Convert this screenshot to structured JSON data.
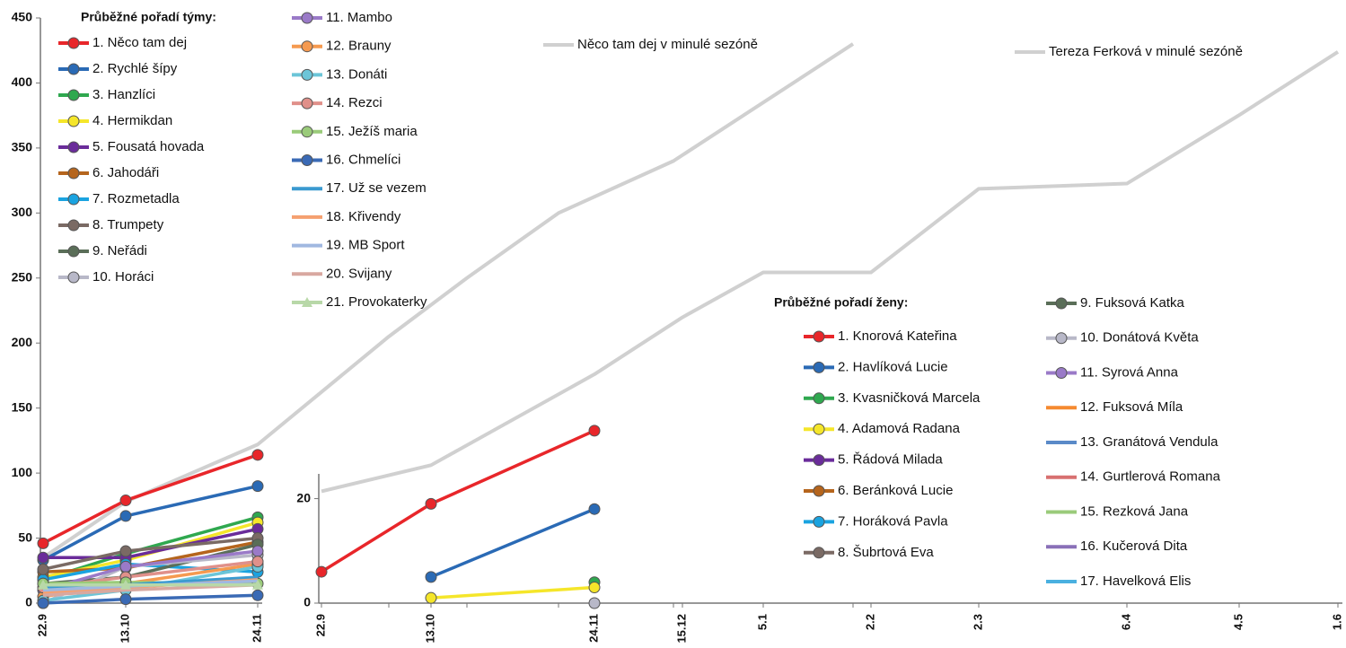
{
  "chart_data": [
    {
      "type": "line",
      "legend_title": "Průběžné pořadí týmy:",
      "categories": [
        "22.9",
        "13.10",
        "24.11",
        null,
        null,
        null,
        null,
        null,
        null
      ],
      "ylim": [
        0,
        450
      ],
      "yticks": [
        0,
        50,
        100,
        150,
        200,
        250,
        300,
        350,
        400,
        450
      ],
      "series": [
        {
          "name": "1. Něco tam dej",
          "color": "#e8262a",
          "marker": "circle",
          "values": [
            46,
            79,
            114,
            null,
            null,
            null,
            null,
            null,
            null
          ]
        },
        {
          "name": "2. Rychlé šípy",
          "color": "#2a6ab5",
          "marker": "circle",
          "values": [
            33,
            67,
            90,
            null,
            null,
            null,
            null,
            null,
            null
          ]
        },
        {
          "name": "3. Hanzlíci",
          "color": "#2fa84f",
          "marker": "circle",
          "values": [
            18,
            38,
            66,
            null,
            null,
            null,
            null,
            null,
            null
          ]
        },
        {
          "name": "4. Hermikdan",
          "color": "#f5e62a",
          "marker": "circle",
          "values": [
            20,
            33,
            62,
            null,
            null,
            null,
            null,
            null,
            null
          ]
        },
        {
          "name": "5. Fousatá hovada",
          "color": "#6a2c9a",
          "marker": "circle",
          "values": [
            35,
            35,
            57,
            null,
            null,
            null,
            null,
            null,
            null
          ]
        },
        {
          "name": "6. Jahodáři",
          "color": "#b5651d",
          "marker": "circle",
          "values": [
            24,
            27,
            47,
            null,
            null,
            null,
            null,
            null,
            null
          ]
        },
        {
          "name": "7. Rozmetadla",
          "color": "#1aa3e0",
          "marker": "circle",
          "values": [
            18,
            30,
            24,
            null,
            null,
            null,
            null,
            null,
            null
          ]
        },
        {
          "name": "8. Trumpety",
          "color": "#7a6a64",
          "marker": "circle",
          "values": [
            26,
            40,
            50,
            null,
            null,
            null,
            null,
            null,
            null
          ]
        },
        {
          "name": "9. Neřádi",
          "color": "#5a6e58",
          "marker": "circle",
          "values": [
            15,
            20,
            45,
            null,
            null,
            null,
            null,
            null,
            null
          ]
        },
        {
          "name": "10. Horáci",
          "color": "#b8b8c8",
          "marker": "circle",
          "values": [
            0,
            28,
            37,
            null,
            null,
            null,
            null,
            null,
            null
          ]
        },
        {
          "name": "11. Mambo",
          "color": "#9a7ac8",
          "marker": "circle",
          "values": [
            10,
            28,
            40,
            null,
            null,
            null,
            null,
            null,
            null
          ]
        },
        {
          "name": "12. Brauny",
          "color": "#f59a50",
          "marker": "circle",
          "values": [
            5,
            15,
            30,
            null,
            null,
            null,
            null,
            null,
            null
          ]
        },
        {
          "name": "13. Donáti",
          "color": "#6cc5d8",
          "marker": "circle",
          "values": [
            2,
            10,
            28,
            null,
            null,
            null,
            null,
            null,
            null
          ]
        },
        {
          "name": "14. Rezci",
          "color": "#e0908a",
          "marker": "circle",
          "values": [
            12,
            20,
            32,
            null,
            null,
            null,
            null,
            null,
            null
          ]
        },
        {
          "name": "15. Ježíš maria",
          "color": "#9acb7a",
          "marker": "circle",
          "values": [
            15,
            16,
            15,
            null,
            null,
            null,
            null,
            null,
            null
          ]
        },
        {
          "name": "16. Chmelíci",
          "color": "#3a6ab5",
          "marker": "circle",
          "values": [
            0,
            3,
            6,
            null,
            null,
            null,
            null,
            null,
            null
          ]
        },
        {
          "name": "17. Už se vezem",
          "color": "#3a9ad0",
          "marker": "none",
          "values": [
            12,
            14,
            20,
            null,
            null,
            null,
            null,
            null,
            null
          ]
        },
        {
          "name": "18. Křivendy",
          "color": "#f5a070",
          "marker": "none",
          "values": [
            8,
            12,
            18,
            null,
            null,
            null,
            null,
            null,
            null
          ]
        },
        {
          "name": "19. MB Sport",
          "color": "#a0b8e0",
          "marker": "none",
          "values": [
            10,
            13,
            17,
            null,
            null,
            null,
            null,
            null,
            null
          ]
        },
        {
          "name": "20. Svijany",
          "color": "#d8a8a0",
          "marker": "none",
          "values": [
            6,
            10,
            14,
            null,
            null,
            null,
            null,
            null,
            null
          ]
        },
        {
          "name": "21. Provokaterky",
          "color": "#b8d8a8",
          "marker": "triangle",
          "values": [
            14,
            14,
            14,
            null,
            null,
            null,
            null,
            null,
            null
          ]
        },
        {
          "name": "Něco tam dej v minulé sezóně",
          "color": "#d0d0d0",
          "marker": "none",
          "values": [
            35,
            78,
            122,
            205,
            250,
            300,
            340,
            385,
            430
          ]
        }
      ]
    },
    {
      "type": "line",
      "legend_title": "Průběžné pořadí ženy:",
      "categories": [
        "22.9",
        "13.10",
        "24.11",
        "15.12",
        "5.1",
        "2.2",
        "2.3",
        "6.4",
        "4.5",
        "1.6"
      ],
      "ylim": [
        0,
        112
      ],
      "yticks": [
        0,
        20
      ],
      "series": [
        {
          "name": "1. Knorová Kateřina",
          "color": "#e8262a",
          "marker": "circle",
          "values": [
            6,
            19,
            33,
            null,
            null,
            null,
            null,
            null,
            null,
            null
          ]
        },
        {
          "name": "2. Havlíková Lucie",
          "color": "#2a6ab5",
          "marker": "circle",
          "values": [
            null,
            5,
            18,
            null,
            null,
            null,
            null,
            null,
            null,
            null
          ]
        },
        {
          "name": "3. Kvasničková Marcela",
          "color": "#2fa84f",
          "marker": "circle",
          "values": [
            null,
            null,
            4,
            null,
            null,
            null,
            null,
            null,
            null,
            null
          ]
        },
        {
          "name": "4. Adamová Radana",
          "color": "#f5e62a",
          "marker": "circle",
          "values": [
            null,
            1,
            3,
            null,
            null,
            null,
            null,
            null,
            null,
            null
          ]
        },
        {
          "name": "5. Řádová Milada",
          "color": "#6a2c9a",
          "marker": "circle",
          "values": [
            null,
            null,
            null,
            null,
            null,
            null,
            null,
            null,
            null,
            null
          ]
        },
        {
          "name": "6. Beránková Lucie",
          "color": "#b5651d",
          "marker": "circle",
          "values": [
            null,
            null,
            null,
            null,
            null,
            null,
            null,
            null,
            null,
            null
          ]
        },
        {
          "name": "7. Horáková Pavla",
          "color": "#1aa3e0",
          "marker": "circle",
          "values": [
            null,
            null,
            null,
            null,
            null,
            null,
            null,
            null,
            null,
            null
          ]
        },
        {
          "name": "8. Šubrtová Eva",
          "color": "#7a6a64",
          "marker": "circle",
          "values": [
            null,
            null,
            null,
            null,
            null,
            null,
            null,
            null,
            null,
            null
          ]
        },
        {
          "name": "9. Fuksová Katka",
          "color": "#5a6e58",
          "marker": "circle",
          "values": [
            null,
            null,
            null,
            null,
            null,
            null,
            null,
            null,
            null,
            null
          ]
        },
        {
          "name": "10. Donátová Květa",
          "color": "#b8b8c8",
          "marker": "circle",
          "values": [
            null,
            null,
            0,
            null,
            null,
            null,
            null,
            null,
            null,
            null
          ]
        },
        {
          "name": "11. Syrová Anna",
          "color": "#9a7ac8",
          "marker": "circle",
          "values": [
            null,
            null,
            null,
            null,
            null,
            null,
            null,
            null,
            null,
            null
          ]
        },
        {
          "name": "12. Fuksová Míla",
          "color": "#f58a30",
          "marker": "none",
          "values": [
            null,
            null,
            null,
            null,
            null,
            null,
            null,
            null,
            null,
            null
          ]
        },
        {
          "name": "13. Granátová Vendula",
          "color": "#5a8ac8",
          "marker": "none",
          "values": [
            null,
            null,
            null,
            null,
            null,
            null,
            null,
            null,
            null,
            null
          ]
        },
        {
          "name": "14. Gurtlerová Romana",
          "color": "#d87070",
          "marker": "none",
          "values": [
            null,
            null,
            null,
            null,
            null,
            null,
            null,
            null,
            null,
            null
          ]
        },
        {
          "name": "15. Rezková Jana",
          "color": "#9acb7a",
          "marker": "none",
          "values": [
            null,
            null,
            null,
            null,
            null,
            null,
            null,
            null,
            null,
            null
          ]
        },
        {
          "name": "16. Kučerová Dita",
          "color": "#8a70b8",
          "marker": "none",
          "values": [
            null,
            null,
            null,
            null,
            null,
            null,
            null,
            null,
            null,
            null
          ]
        },
        {
          "name": "17. Havelková Elis",
          "color": "#4ab0e0",
          "marker": "none",
          "values": [
            null,
            null,
            null,
            null,
            null,
            null,
            null,
            null,
            null,
            null
          ]
        },
        {
          "name": "Tereza Ferková v minulé sezóně",
          "color": "#d0d0d0",
          "marker": "none",
          "values": [
            21.4,
            26.4,
            43.8,
            54.7,
            63.3,
            63.3,
            79.3,
            80.3,
            93.4,
            105.5
          ]
        }
      ]
    }
  ]
}
